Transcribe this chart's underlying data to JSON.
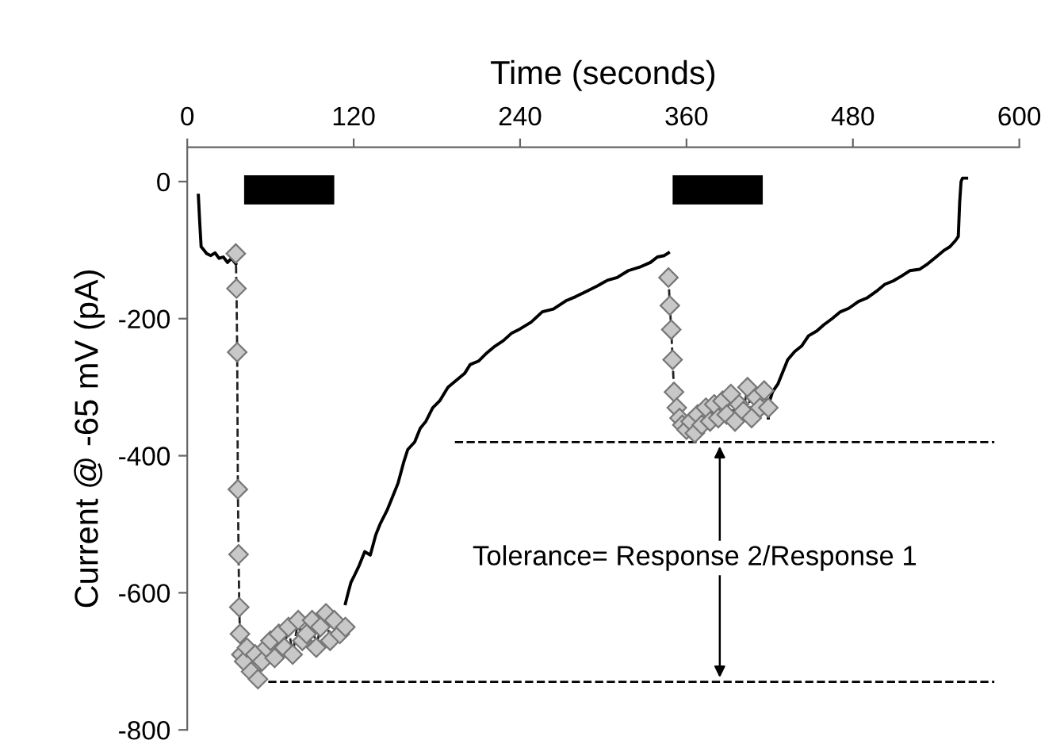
{
  "chart_data": {
    "type": "line",
    "xlabel": "Time (seconds)",
    "ylabel": "Current @ -65 mV (pA)",
    "xlim": [
      0,
      600
    ],
    "xticks": [
      0,
      120,
      240,
      360,
      480,
      600
    ],
    "ylim": [
      -800,
      50
    ],
    "yticks": [
      -800,
      -600,
      -400,
      -200,
      0
    ],
    "grid": false,
    "legend": false,
    "series": [
      {
        "color": "#000000",
        "line_style": "solid",
        "marker": "none",
        "x": [
          8,
          9,
          10,
          12,
          14,
          17,
          20,
          23,
          26,
          29,
          32,
          35,
          75,
          114,
          116,
          118,
          120,
          124,
          128,
          132,
          136,
          139,
          144,
          148,
          152,
          156,
          159,
          164,
          168,
          172,
          177,
          182,
          188,
          194,
          200,
          204,
          210,
          216,
          222,
          228,
          234,
          240,
          248,
          256,
          264,
          273,
          280,
          288,
          296,
          303,
          310,
          318,
          326,
          334,
          339,
          344,
          347,
          383,
          419,
          420,
          422,
          426,
          430,
          433,
          438,
          443,
          448,
          454,
          459,
          465,
          471,
          477,
          484,
          490,
          497,
          503,
          509,
          515,
          521,
          528,
          534,
          540,
          546,
          550,
          554,
          556,
          557,
          558,
          559,
          562
        ],
        "values": [
          -20,
          -60,
          -95,
          -100,
          -105,
          -108,
          -104,
          -112,
          -110,
          -118,
          -112,
          -120,
          null,
          -616,
          -600,
          -585,
          -577,
          -560,
          -540,
          -545,
          -515,
          -500,
          -480,
          -460,
          -440,
          -410,
          -391,
          -380,
          -360,
          -350,
          -330,
          -320,
          -300,
          -290,
          -280,
          -267,
          -262,
          -250,
          -240,
          -232,
          -221,
          -215,
          -205,
          -190,
          -186,
          -174,
          -168,
          -160,
          -152,
          -144,
          -140,
          -130,
          -125,
          -118,
          -110,
          -108,
          -104,
          null,
          -345,
          -320,
          -307,
          -295,
          -275,
          -260,
          -248,
          -240,
          -225,
          -218,
          -209,
          -200,
          -190,
          -185,
          -175,
          -170,
          -160,
          -150,
          -145,
          -138,
          -130,
          -128,
          -120,
          -110,
          -100,
          -95,
          -86,
          -80,
          -30,
          0,
          5,
          5
        ]
      },
      {
        "color": "#c8c8c8",
        "line_style": "dashed",
        "marker": "diamond",
        "x": [
          35,
          35.5,
          36,
          36.5,
          37,
          37.5,
          38,
          39,
          41,
          43,
          46,
          49,
          51,
          54,
          57,
          60,
          63,
          66,
          70,
          73,
          76,
          80,
          83,
          86,
          90,
          93,
          96,
          100,
          103,
          106,
          110,
          114,
          230,
          347,
          348,
          349,
          350,
          351,
          353,
          355,
          357,
          360,
          363,
          366,
          368,
          371,
          374,
          377,
          380,
          383,
          386,
          389,
          392,
          395,
          398,
          401,
          404,
          407,
          410,
          413,
          416,
          419
        ],
        "values": [
          -105,
          -156,
          -249,
          -449,
          -544,
          -621,
          -660,
          -690,
          -700,
          -680,
          -715,
          -690,
          -726,
          -700,
          -680,
          -670,
          -695,
          -660,
          -680,
          -650,
          -690,
          -640,
          -670,
          -660,
          -640,
          -680,
          -650,
          -630,
          -670,
          -640,
          -660,
          -650,
          null,
          -140,
          -181,
          -216,
          -260,
          -307,
          -330,
          -345,
          -355,
          -362,
          -350,
          -367,
          -340,
          -355,
          -330,
          -350,
          -325,
          -345,
          -320,
          -340,
          -310,
          -350,
          -325,
          -335,
          -300,
          -345,
          -315,
          -330,
          -305,
          -330
        ]
      },
      {
        "color": "#000000",
        "line_style": "dashed",
        "marker": "none",
        "x": [
          50,
          582
        ],
        "values": [
          -730,
          -730
        ]
      },
      {
        "color": "#000000",
        "line_style": "dashed",
        "marker": "none",
        "x": [
          193,
          582
        ],
        "values": [
          -380,
          -380
        ]
      }
    ],
    "bands": [
      {
        "axis": "x",
        "from": 41,
        "to": 106,
        "color": "#000000"
      },
      {
        "axis": "x",
        "from": 350,
        "to": 415,
        "color": "#000000"
      }
    ],
    "annotations": [
      "Tolerance= Response 2/Response 1"
    ]
  }
}
